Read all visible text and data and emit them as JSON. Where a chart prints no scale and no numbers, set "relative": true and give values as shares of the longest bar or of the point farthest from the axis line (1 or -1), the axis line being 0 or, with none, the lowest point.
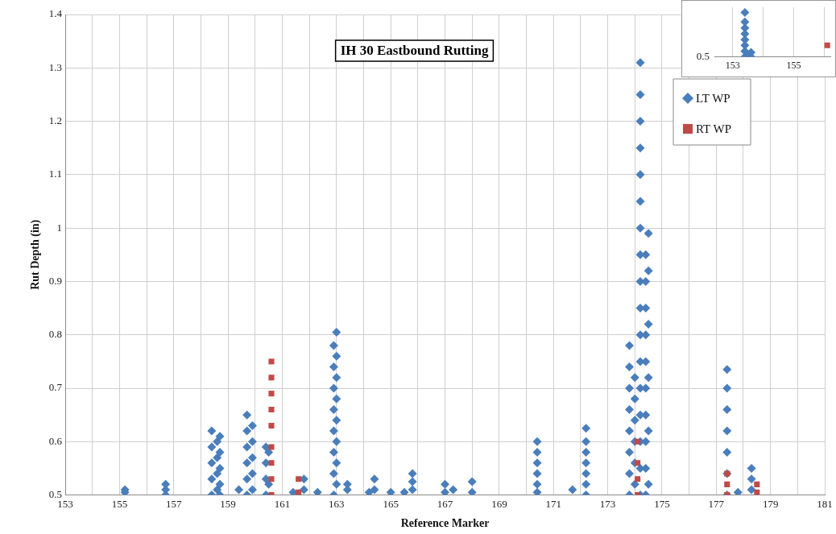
{
  "chart_data": [
    {
      "type": "scatter",
      "title": "IH 30 Eastbound Rutting",
      "xlabel": "Reference Marker",
      "ylabel": "Rut Depth (in)",
      "xlim": [
        153,
        181
      ],
      "xticks": [
        153,
        {
          "value": 154,
          "label": null
        },
        155,
        {
          "value": 156,
          "label": null
        },
        157,
        {
          "value": 158,
          "label": null
        },
        159,
        {
          "value": 160,
          "label": null
        },
        161,
        {
          "value": 162,
          "label": null
        },
        163,
        {
          "value": 164,
          "label": null
        },
        165,
        {
          "value": 166,
          "label": null
        },
        167,
        {
          "value": 168,
          "label": null
        },
        169,
        {
          "value": 170,
          "label": null
        },
        171,
        {
          "value": 172,
          "label": null
        },
        173,
        {
          "value": 174,
          "label": null
        },
        175,
        {
          "value": 176,
          "label": null
        },
        177,
        {
          "value": 178,
          "label": null
        },
        179,
        {
          "value": 180,
          "label": null
        },
        181
      ],
      "ylim": [
        0.5,
        1.4
      ],
      "yticks": [
        0.5,
        0.6,
        0.7,
        0.8,
        0.9,
        1,
        1.1,
        1.2,
        1.3,
        1.4
      ],
      "grid": true,
      "legend": "top right",
      "series": [
        {
          "name": "LT WP",
          "color": "#4a7ebb",
          "marker": "diamond",
          "x": [
            155.2,
            155.2,
            156.7,
            156.7,
            156.7,
            158.4,
            158.4,
            158.4,
            158.4,
            158.4,
            158.7,
            158.7,
            158.7,
            158.7,
            158.7,
            158.6,
            158.6,
            158.6,
            158.6,
            159.4,
            159.7,
            159.7,
            159.7,
            159.7,
            159.7,
            159.7,
            159.9,
            159.9,
            159.9,
            159.9,
            159.9,
            160.4,
            160.4,
            160.4,
            160.4,
            160.5,
            160.5,
            161.4,
            161.8,
            161.8,
            162.3,
            162.9,
            162.9,
            162.9,
            162.9,
            162.9,
            162.9,
            162.9,
            162.9,
            163,
            163,
            163,
            163,
            163,
            163,
            163,
            163,
            163.4,
            163.4,
            164.2,
            164.4,
            164.4,
            165,
            165.5,
            165.8,
            165.8,
            165.8,
            167,
            167,
            167.3,
            168,
            168,
            170.4,
            170.4,
            170.4,
            170.4,
            170.4,
            170.4,
            171.7,
            172.2,
            172.2,
            172.2,
            172.2,
            172.2,
            172.2,
            172.2,
            173.8,
            173.8,
            173.8,
            173.8,
            173.8,
            173.8,
            173.8,
            173.8,
            174,
            174,
            174,
            174,
            174,
            174,
            174.2,
            174.2,
            174.2,
            174.2,
            174.2,
            174.2,
            174.2,
            174.2,
            174.2,
            174.2,
            174.2,
            174.2,
            174.2,
            174.2,
            174.2,
            174.2,
            174.2,
            174.4,
            174.4,
            174.4,
            174.4,
            174.4,
            174.4,
            174.4,
            174.4,
            174.4,
            174.4,
            174.5,
            174.5,
            174.5,
            174.5,
            174.5,
            174.5,
            177.4,
            177.4,
            177.4,
            177.4,
            177.4,
            177.4,
            177.4,
            177.8,
            178.3,
            178.3,
            178.3
          ],
          "values": [
            0.51,
            0.505,
            0.5,
            0.51,
            0.52,
            0.5,
            0.53,
            0.56,
            0.59,
            0.62,
            0.5,
            0.52,
            0.55,
            0.58,
            0.61,
            0.51,
            0.54,
            0.57,
            0.6,
            0.51,
            0.5,
            0.53,
            0.56,
            0.59,
            0.62,
            0.65,
            0.51,
            0.54,
            0.57,
            0.6,
            0.63,
            0.5,
            0.53,
            0.56,
            0.59,
            0.52,
            0.58,
            0.505,
            0.51,
            0.53,
            0.505,
            0.5,
            0.54,
            0.58,
            0.62,
            0.66,
            0.7,
            0.74,
            0.78,
            0.52,
            0.56,
            0.6,
            0.64,
            0.68,
            0.72,
            0.76,
            0.805,
            0.51,
            0.52,
            0.505,
            0.51,
            0.53,
            0.505,
            0.505,
            0.51,
            0.525,
            0.54,
            0.505,
            0.52,
            0.51,
            0.505,
            0.525,
            0.505,
            0.52,
            0.54,
            0.56,
            0.58,
            0.6,
            0.51,
            0.5,
            0.52,
            0.54,
            0.56,
            0.58,
            0.6,
            0.625,
            0.5,
            0.54,
            0.58,
            0.62,
            0.66,
            0.7,
            0.74,
            0.78,
            0.52,
            0.56,
            0.6,
            0.64,
            0.68,
            0.72,
            0.5,
            0.55,
            0.6,
            0.65,
            0.7,
            0.75,
            0.8,
            0.85,
            0.9,
            0.95,
            1,
            1.05,
            1.1,
            1.15,
            1.2,
            1.25,
            1.31,
            0.5,
            0.55,
            0.6,
            0.65,
            0.7,
            0.75,
            0.8,
            0.85,
            0.9,
            0.95,
            0.52,
            0.62,
            0.72,
            0.82,
            0.92,
            0.99,
            0.5,
            0.54,
            0.58,
            0.62,
            0.66,
            0.7,
            0.735,
            0.505,
            0.51,
            0.53,
            0.55
          ]
        },
        {
          "name": "RT WP",
          "color": "#be4b48",
          "marker": "square",
          "x": [
            160.6,
            160.6,
            160.6,
            160.6,
            160.6,
            160.6,
            160.6,
            160.6,
            160.6,
            161.6,
            161.6,
            174.1,
            174.1,
            174.1,
            174.1,
            177.4,
            177.4,
            177.4,
            178.5,
            178.5
          ],
          "values": [
            0.5,
            0.53,
            0.56,
            0.59,
            0.63,
            0.66,
            0.69,
            0.72,
            0.75,
            0.505,
            0.53,
            0.5,
            0.53,
            0.56,
            0.6,
            0.5,
            0.52,
            0.54,
            0.505,
            0.52
          ]
        }
      ]
    },
    {
      "type": "scatter",
      "xlim": [
        152.4,
        156.2
      ],
      "xticks": [
        153,
        {
          "value": 154,
          "label": null
        },
        155,
        {
          "value": 156,
          "label": null
        }
      ],
      "relative": true,
      "annotations": [
        "0.5"
      ],
      "grid": "x",
      "series": [
        {
          "color": "#4a7ebb",
          "marker": "diamond",
          "x": [
            153.4,
            153.4,
            153.4,
            153.4,
            153.4,
            153.4,
            153.4,
            153.4,
            153.5,
            153.6,
            153.6
          ],
          "values": [
            0,
            0.13,
            0.26,
            0.39,
            0.52,
            0.65,
            0.79,
            1,
            0.05,
            0,
            0.1
          ]
        },
        {
          "color": "#be4b48",
          "marker": "square",
          "x": [
            156.1
          ],
          "values": [
            0.26
          ]
        }
      ]
    }
  ]
}
